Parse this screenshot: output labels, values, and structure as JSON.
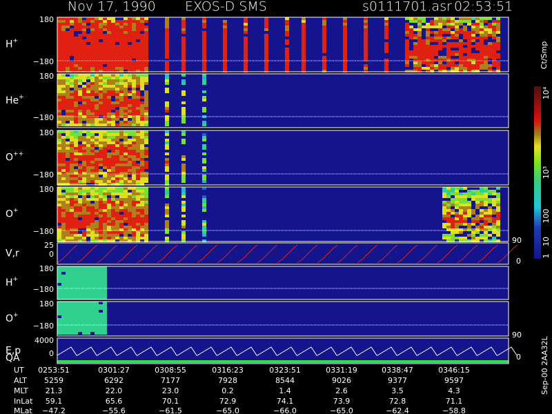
{
  "header": {
    "date": "Nov 17, 1990",
    "instrument": "EXOS-D SMS",
    "file": "s0111701.asr",
    "time": "02:53:51"
  },
  "panels": [
    {
      "label": "H",
      "sup": "+",
      "ymax": "180",
      "ymin": "−180"
    },
    {
      "label": "He",
      "sup": "+",
      "ymax": "180",
      "ymin": "−180"
    },
    {
      "label": "O",
      "sup": "++",
      "ymax": "180",
      "ymin": "−180"
    },
    {
      "label": "O",
      "sup": "+",
      "ymax": "180",
      "ymin": "−180"
    },
    {
      "label": "V,r",
      "ymax": "25",
      "ymin": "0"
    },
    {
      "label": "H",
      "sup": "+",
      "ymax": "180",
      "ymin": "−180"
    },
    {
      "label": "O",
      "sup": "+",
      "ymax": "180",
      "ymin": "−180"
    },
    {
      "label": "E,p",
      "ymax": "4000",
      "ymin": "0"
    }
  ],
  "qa": {
    "label": "QA",
    "zero": "0"
  },
  "right_axis": {
    "vr_top": "90",
    "vr_bottom": "0",
    "ep_top": "90",
    "ep_bottom": "0"
  },
  "colorbar": {
    "title": "Ct/Smp",
    "labels": [
      "1",
      "10",
      "100",
      "10³",
      "10⁴"
    ]
  },
  "footer": {
    "row_labels": [
      "UT",
      "ALT",
      "MLT",
      "InLat",
      "MLat"
    ],
    "columns": [
      [
        "0253:51",
        "5259",
        "21.3",
        "59.1",
        "−47.2"
      ],
      [
        "0301:27",
        "6292",
        "22.0",
        "65.6",
        "−55.6"
      ],
      [
        "0308:55",
        "7177",
        "23.0",
        "70.1",
        "−61.5"
      ],
      [
        "0316:23",
        "7928",
        "0.2",
        "72.9",
        "−65.0"
      ],
      [
        "0323:51",
        "8544",
        "1.4",
        "74.1",
        "−66.0"
      ],
      [
        "0331:19",
        "9026",
        "2.6",
        "73.9",
        "−65.0"
      ],
      [
        "0338:47",
        "9377",
        "3.5",
        "72.8",
        "−62.4"
      ],
      [
        "0346:15",
        "9597",
        "4.3",
        "71.1",
        "−58.8"
      ]
    ]
  },
  "side_note": "Sep-00 2AA32L"
}
